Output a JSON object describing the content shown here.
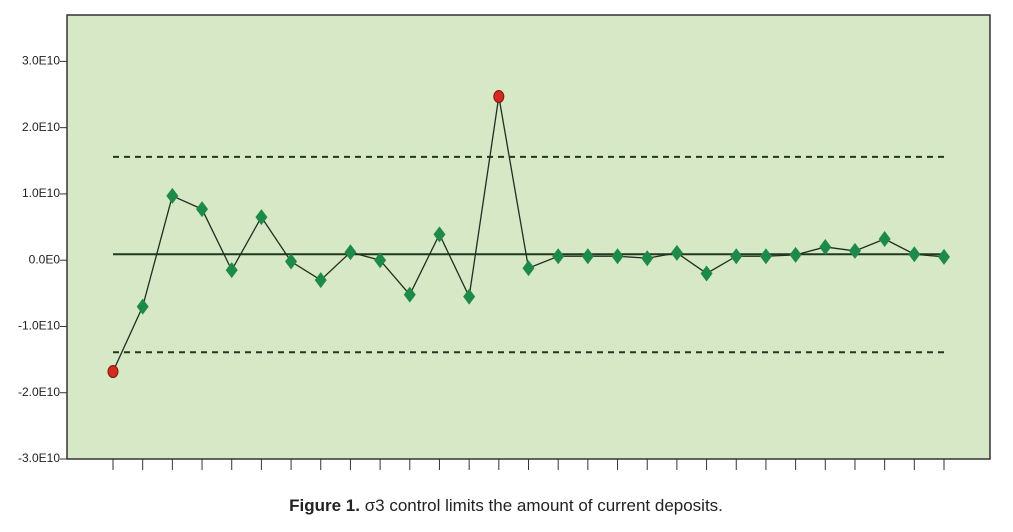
{
  "chart_data": {
    "type": "control",
    "caption_label": "Figure 1.",
    "caption": "σ3 control limits the amount of current deposits.",
    "categories": [
      null,
      null,
      null,
      null,
      null,
      null,
      null,
      null,
      null,
      null,
      null,
      null,
      null,
      null,
      null,
      null,
      null,
      null,
      null,
      null,
      null,
      null,
      null,
      null,
      null,
      null,
      null,
      null,
      null
    ],
    "values": [
      -16800000000,
      -7000000000,
      9700000000,
      7700000000,
      -1500000000,
      6500000000,
      -200000000,
      -3000000000,
      1200000000,
      0,
      -5200000000,
      3900000000,
      -5500000000,
      24700000000,
      -1200000000,
      600000000,
      600000000,
      600000000,
      300000000,
      1100000000,
      -2000000000,
      600000000,
      600000000,
      800000000,
      2000000000,
      1400000000,
      3200000000,
      900000000,
      500000000
    ],
    "color": "#1e8a4a",
    "outlier_color": "#d42a1f",
    "ucl": 15600000000,
    "center": 900000000,
    "lcl": -13900000000,
    "ylim": [
      -30000000000,
      37000000000
    ],
    "yticks": [
      {
        "value": -30000000000,
        "label": "-3.0E10"
      },
      {
        "value": -20000000000,
        "label": "-2.0E10"
      },
      {
        "value": -10000000000,
        "label": "-1.0E10"
      },
      {
        "value": 0,
        "label": "0.0E0"
      },
      {
        "value": 10000000000,
        "label": "1.0E10"
      },
      {
        "value": 20000000000,
        "label": "2.0E10"
      },
      {
        "value": 30000000000,
        "label": "3.0E10"
      }
    ]
  }
}
